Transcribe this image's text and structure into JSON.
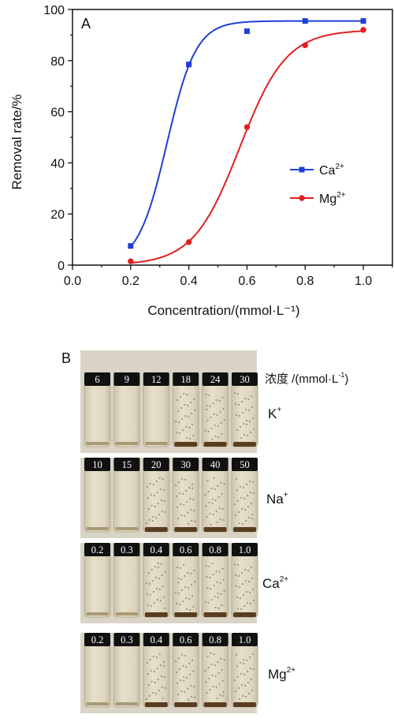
{
  "chart_data": {
    "type": "line",
    "panel_label": "A",
    "xlabel": "Concentration/(mmol·L⁻¹)",
    "ylabel": "Removal rate/%",
    "xlim": [
      0.0,
      1.1
    ],
    "ylim": [
      0,
      100
    ],
    "xticks": [
      "0.0",
      "0.2",
      "0.4",
      "0.6",
      "0.8",
      "1.0"
    ],
    "xtick_values": [
      0.0,
      0.2,
      0.4,
      0.6,
      0.8,
      1.0
    ],
    "yticks": [
      "0",
      "20",
      "40",
      "60",
      "80",
      "100"
    ],
    "ytick_values": [
      0,
      20,
      40,
      60,
      80,
      100
    ],
    "legend_position": "right-middle",
    "series": [
      {
        "name": "Ca",
        "name_sup": "2+",
        "color": "#1f3fd6",
        "marker": "square",
        "x": [
          0.2,
          0.4,
          0.6,
          0.8,
          1.0
        ],
        "y": [
          7.5,
          78.5,
          91.5,
          95.5,
          95.5
        ]
      },
      {
        "name": "Mg",
        "name_sup": "2+",
        "color": "#e02020",
        "marker": "circle",
        "x": [
          0.2,
          0.4,
          0.6,
          0.8,
          1.0
        ],
        "y": [
          1.5,
          9.0,
          54.0,
          86.0,
          92.0
        ]
      }
    ]
  },
  "photo_panel": {
    "panel_label": "B",
    "header_label": "浓度 /(mmol·L",
    "header_sup": "-1",
    "header_close": ")",
    "rows": [
      {
        "ion": "K",
        "ion_sup": "+",
        "labels": [
          "6",
          "9",
          "12",
          "18",
          "24",
          "30"
        ]
      },
      {
        "ion": "Na",
        "ion_sup": "+",
        "labels": [
          "10",
          "15",
          "20",
          "30",
          "40",
          "50"
        ]
      },
      {
        "ion": "Ca",
        "ion_sup": "2+",
        "labels": [
          "0.2",
          "0.3",
          "0.4",
          "0.6",
          "0.8",
          "1.0"
        ]
      },
      {
        "ion": "Mg",
        "ion_sup": "2+",
        "labels": [
          "0.2",
          "0.3",
          "0.4",
          "0.6",
          "0.8",
          "1.0"
        ]
      }
    ]
  }
}
